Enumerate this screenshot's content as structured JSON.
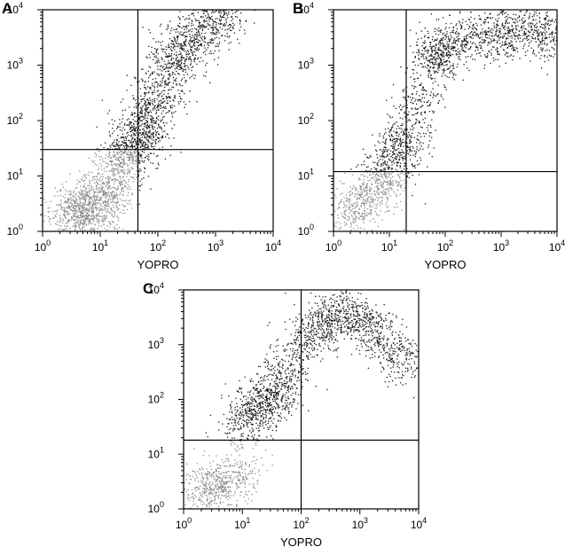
{
  "chart_data": [
    {
      "panel": "A",
      "type": "scatter",
      "xlabel": "YOPRO",
      "ylabel": "",
      "xscale": "log",
      "yscale": "log",
      "xlim": [
        1,
        10000
      ],
      "ylim": [
        1,
        10000
      ],
      "x_ticks": [
        "10",
        "10",
        "10",
        "10",
        "10"
      ],
      "x_tick_exponents": [
        "0",
        "1",
        "2",
        "3",
        "4"
      ],
      "y_ticks": [
        "10",
        "10",
        "10",
        "10",
        "10"
      ],
      "y_tick_exponents": [
        "0",
        "1",
        "2",
        "3",
        "4"
      ],
      "gates": {
        "x": 45,
        "y": 30
      },
      "colors": {
        "negative": "#8c8c8c",
        "positive": "#1a1a1a",
        "gate": "#000000"
      },
      "series": [
        {
          "x": [
            3,
            5,
            8,
            4,
            6,
            10,
            15,
            20,
            25,
            30,
            40,
            50,
            60,
            80,
            100,
            150,
            200,
            300,
            500,
            800,
            1500
          ],
          "y": [
            2,
            3,
            4,
            2.5,
            1.5,
            3,
            5,
            10,
            20,
            25,
            40,
            60,
            80,
            200,
            300,
            800,
            1500,
            2500,
            3500,
            5000,
            8000
          ]
        }
      ]
    },
    {
      "panel": "B",
      "type": "scatter",
      "xlabel": "YOPRO",
      "ylabel": "",
      "xscale": "log",
      "yscale": "log",
      "xlim": [
        1,
        10000
      ],
      "ylim": [
        1,
        10000
      ],
      "x_ticks": [
        "10",
        "10",
        "10",
        "10",
        "10"
      ],
      "x_tick_exponents": [
        "0",
        "1",
        "2",
        "3",
        "4"
      ],
      "y_ticks": [
        "10",
        "10",
        "10",
        "10",
        "10"
      ],
      "y_tick_exponents": [
        "0",
        "1",
        "2",
        "3",
        "4"
      ],
      "gates": {
        "x": 20,
        "y": 12
      },
      "colors": {
        "negative": "#8c8c8c",
        "positive": "#1a1a1a",
        "gate": "#000000"
      },
      "series": [
        {
          "x": [
            2,
            3,
            5,
            8,
            10,
            15,
            20,
            30,
            50,
            80,
            100,
            200,
            500,
            1000,
            2000,
            5000,
            8000
          ],
          "y": [
            2,
            3,
            5,
            8,
            15,
            30,
            50,
            200,
            1000,
            1500,
            2000,
            3000,
            3500,
            3000,
            4000,
            5000,
            3000
          ]
        }
      ]
    },
    {
      "panel": "C",
      "type": "scatter",
      "xlabel": "YOPRO",
      "ylabel": "",
      "xscale": "log",
      "yscale": "log",
      "xlim": [
        1,
        10000
      ],
      "ylim": [
        1,
        10000
      ],
      "x_ticks": [
        "10",
        "10",
        "10",
        "10",
        "10"
      ],
      "x_tick_exponents": [
        "0",
        "1",
        "2",
        "3",
        "4"
      ],
      "y_ticks": [
        "10",
        "10",
        "10",
        "10",
        "10"
      ],
      "y_tick_exponents": [
        "0",
        "1",
        "2",
        "3",
        "4"
      ],
      "gates": {
        "x": 100,
        "y": 18
      },
      "colors": {
        "negative": "#8c8c8c",
        "positive": "#1a1a1a",
        "gate": "#000000"
      },
      "series": [
        {
          "x": [
            2,
            3,
            5,
            8,
            10,
            15,
            20,
            30,
            40,
            60,
            100,
            200,
            300,
            500,
            800,
            1500,
            3000,
            6000
          ],
          "y": [
            2,
            3,
            2.5,
            4,
            30,
            60,
            80,
            100,
            150,
            300,
            1000,
            2000,
            3000,
            4000,
            3000,
            2000,
            1000,
            500
          ]
        }
      ]
    }
  ]
}
